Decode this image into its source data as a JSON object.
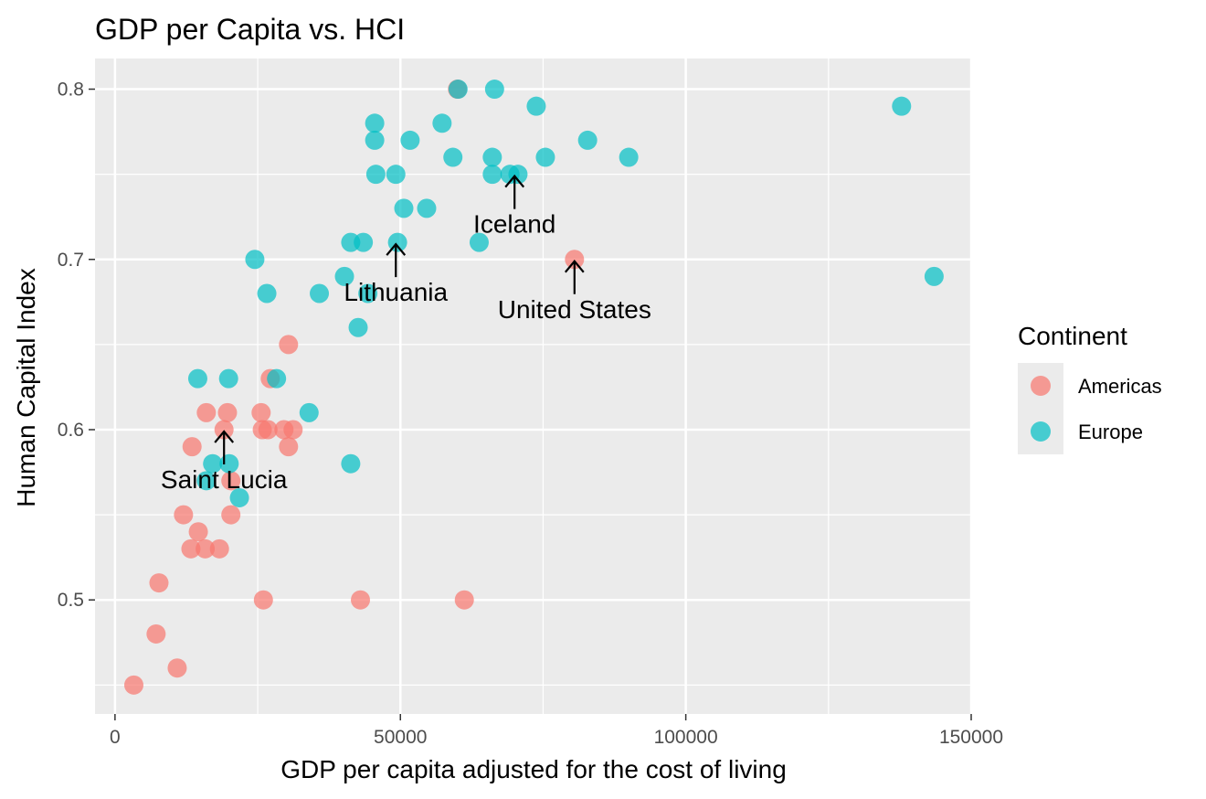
{
  "chart_data": {
    "type": "scatter",
    "title": "GDP per Capita vs. HCI",
    "xlabel": "GDP per capita adjusted for the cost of living",
    "ylabel": "Human Capital Index",
    "xlim": [
      -3500,
      150000
    ],
    "ylim": [
      0.433,
      0.818
    ],
    "x_ticks": [
      0,
      50000,
      100000,
      150000
    ],
    "x_tick_labels": [
      "0",
      "50000",
      "100000",
      "150000"
    ],
    "y_ticks": [
      0.5,
      0.6,
      0.7,
      0.8
    ],
    "y_tick_labels": [
      "0.5",
      "0.6",
      "0.7",
      "0.8"
    ],
    "grid": true,
    "legend": {
      "title": "Continent",
      "position": "right",
      "entries": [
        {
          "label": "Americas",
          "color": "#F8766D"
        },
        {
          "label": "Europe",
          "color": "#00BFC4"
        }
      ]
    },
    "series": [
      {
        "name": "Americas",
        "color": "#F8766D",
        "points": [
          {
            "x": 3300,
            "y": 0.45
          },
          {
            "x": 7200,
            "y": 0.48
          },
          {
            "x": 7700,
            "y": 0.51
          },
          {
            "x": 10900,
            "y": 0.46
          },
          {
            "x": 12000,
            "y": 0.55
          },
          {
            "x": 13300,
            "y": 0.53
          },
          {
            "x": 13500,
            "y": 0.59
          },
          {
            "x": 14600,
            "y": 0.54
          },
          {
            "x": 15800,
            "y": 0.53
          },
          {
            "x": 16000,
            "y": 0.61
          },
          {
            "x": 18300,
            "y": 0.53
          },
          {
            "x": 19100,
            "y": 0.6
          },
          {
            "x": 19700,
            "y": 0.61
          },
          {
            "x": 20300,
            "y": 0.55
          },
          {
            "x": 20300,
            "y": 0.57
          },
          {
            "x": 25600,
            "y": 0.61
          },
          {
            "x": 25800,
            "y": 0.6
          },
          {
            "x": 26000,
            "y": 0.5
          },
          {
            "x": 26800,
            "y": 0.6
          },
          {
            "x": 27200,
            "y": 0.63
          },
          {
            "x": 29600,
            "y": 0.6
          },
          {
            "x": 30400,
            "y": 0.59
          },
          {
            "x": 30400,
            "y": 0.65
          },
          {
            "x": 31200,
            "y": 0.6
          },
          {
            "x": 43000,
            "y": 0.5
          },
          {
            "x": 61200,
            "y": 0.5
          },
          {
            "x": 60000,
            "y": 0.8
          },
          {
            "x": 80500,
            "y": 0.7
          }
        ]
      },
      {
        "name": "Europe",
        "color": "#00BFC4",
        "points": [
          {
            "x": 14500,
            "y": 0.63
          },
          {
            "x": 16000,
            "y": 0.57
          },
          {
            "x": 17100,
            "y": 0.58
          },
          {
            "x": 19900,
            "y": 0.63
          },
          {
            "x": 20000,
            "y": 0.58
          },
          {
            "x": 21800,
            "y": 0.56
          },
          {
            "x": 24500,
            "y": 0.7
          },
          {
            "x": 26600,
            "y": 0.68
          },
          {
            "x": 28300,
            "y": 0.63
          },
          {
            "x": 34000,
            "y": 0.61
          },
          {
            "x": 35800,
            "y": 0.68
          },
          {
            "x": 40200,
            "y": 0.69
          },
          {
            "x": 41300,
            "y": 0.71
          },
          {
            "x": 41300,
            "y": 0.58
          },
          {
            "x": 42600,
            "y": 0.66
          },
          {
            "x": 43500,
            "y": 0.71
          },
          {
            "x": 44300,
            "y": 0.68
          },
          {
            "x": 45500,
            "y": 0.77
          },
          {
            "x": 45500,
            "y": 0.78
          },
          {
            "x": 45700,
            "y": 0.75
          },
          {
            "x": 49200,
            "y": 0.75
          },
          {
            "x": 49500,
            "y": 0.71
          },
          {
            "x": 50600,
            "y": 0.73
          },
          {
            "x": 51700,
            "y": 0.77
          },
          {
            "x": 54600,
            "y": 0.73
          },
          {
            "x": 57300,
            "y": 0.78
          },
          {
            "x": 59200,
            "y": 0.76
          },
          {
            "x": 60100,
            "y": 0.8
          },
          {
            "x": 63800,
            "y": 0.71
          },
          {
            "x": 66100,
            "y": 0.75
          },
          {
            "x": 66100,
            "y": 0.76
          },
          {
            "x": 66500,
            "y": 0.8
          },
          {
            "x": 69200,
            "y": 0.75
          },
          {
            "x": 70600,
            "y": 0.75
          },
          {
            "x": 73800,
            "y": 0.79
          },
          {
            "x": 75400,
            "y": 0.76
          },
          {
            "x": 82800,
            "y": 0.77
          },
          {
            "x": 90000,
            "y": 0.76
          },
          {
            "x": 137800,
            "y": 0.79
          },
          {
            "x": 143500,
            "y": 0.69
          }
        ]
      }
    ],
    "annotations": [
      {
        "text": "Iceland",
        "x": 70000,
        "y": 0.75
      },
      {
        "text": "Lithuania",
        "x": 49200,
        "y": 0.71
      },
      {
        "text": "United States",
        "x": 80500,
        "y": 0.7
      },
      {
        "text": "Saint Lucia",
        "x": 19100,
        "y": 0.6
      }
    ]
  }
}
